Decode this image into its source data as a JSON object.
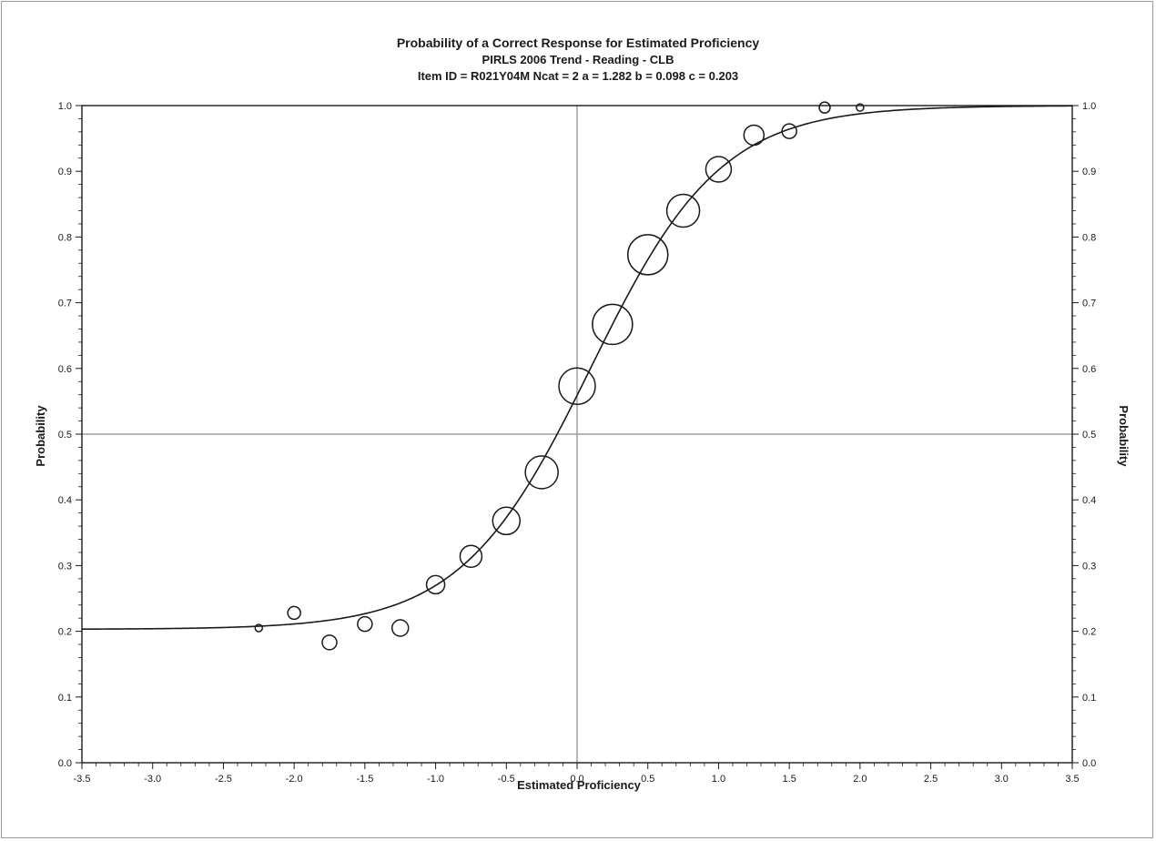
{
  "chart_data": {
    "type": "scatter",
    "title": "Probability of a Correct Response for Estimated Proficiency",
    "subtitle": "PIRLS 2006 Trend - Reading - CLB",
    "item_line": "Item ID = R021Y04M  Ncat = 2  a = 1.282  b = 0.098  c = 0.203",
    "xlabel": "Estimated Proficiency",
    "ylabel": "Probability",
    "ylabel_right": "Probability",
    "xlim": [
      -3.5,
      3.5
    ],
    "ylim": [
      0.0,
      1.0
    ],
    "x_ticks": [
      "-3.5",
      "-3.0",
      "-2.5",
      "-2.0",
      "-1.5",
      "-1.0",
      "-0.5",
      "0.0",
      "0.5",
      "1.0",
      "1.5",
      "2.0",
      "2.5",
      "3.0",
      "3.5"
    ],
    "y_ticks": [
      "0.0",
      "0.1",
      "0.2",
      "0.3",
      "0.4",
      "0.5",
      "0.6",
      "0.7",
      "0.8",
      "0.9",
      "1.0"
    ],
    "reference_lines": {
      "x": 0.0,
      "y": 0.5
    },
    "curve": {
      "model": "3PL",
      "a": 1.282,
      "b": 0.098,
      "c": 0.203,
      "D": 1.7
    },
    "points": [
      {
        "x": -2.25,
        "y": 0.205,
        "weight": 1
      },
      {
        "x": -2.0,
        "y": 0.228,
        "weight": 4
      },
      {
        "x": -1.75,
        "y": 0.183,
        "weight": 5
      },
      {
        "x": -1.5,
        "y": 0.211,
        "weight": 5
      },
      {
        "x": -1.25,
        "y": 0.205,
        "weight": 6
      },
      {
        "x": -1.0,
        "y": 0.271,
        "weight": 7
      },
      {
        "x": -0.75,
        "y": 0.314,
        "weight": 9
      },
      {
        "x": -0.5,
        "y": 0.368,
        "weight": 12
      },
      {
        "x": -0.25,
        "y": 0.442,
        "weight": 15
      },
      {
        "x": 0.0,
        "y": 0.573,
        "weight": 17
      },
      {
        "x": 0.25,
        "y": 0.667,
        "weight": 19
      },
      {
        "x": 0.5,
        "y": 0.773,
        "weight": 19
      },
      {
        "x": 0.75,
        "y": 0.84,
        "weight": 15
      },
      {
        "x": 1.0,
        "y": 0.903,
        "weight": 11
      },
      {
        "x": 1.25,
        "y": 0.955,
        "weight": 8
      },
      {
        "x": 1.5,
        "y": 0.961,
        "weight": 5
      },
      {
        "x": 1.75,
        "y": 0.997,
        "weight": 3
      },
      {
        "x": 2.0,
        "y": 0.997,
        "weight": 1
      }
    ],
    "grid": false,
    "colors": {
      "curve": "#1a1a1a",
      "points": "#1a1a1a",
      "reference": "#8a8a8a",
      "frame": "#1a1a1a"
    }
  }
}
